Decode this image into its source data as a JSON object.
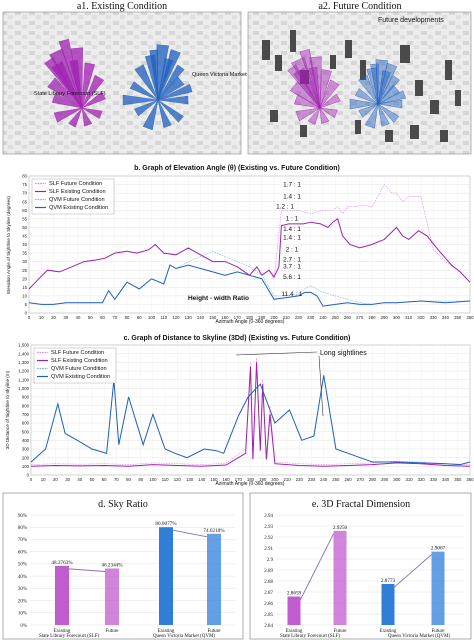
{
  "panel_a1": {
    "title": "a1. Existing Condition",
    "labels": [
      "State Library Forecourt (SLF)",
      "Queen Victoria Market (QVM)"
    ]
  },
  "panel_a2": {
    "title": "a2. Future Condition",
    "labels": [
      "Future developments"
    ]
  },
  "colors": {
    "slf_future": "#d98ae0",
    "slf_existing": "#a020b0",
    "qvm_future": "#7fb2e8",
    "qvm_existing": "#1f5fbf",
    "bar_slf": "#c05ccf",
    "bar_qvm": "#2f7fd8"
  },
  "chart_data": [
    {
      "id": "b",
      "type": "line",
      "title": "b. Graph of Elevation Angle (θ) (Existing vs. Future Condition)",
      "xlabel": "Azimuth Angle (0-360 degrees)",
      "ylabel": "Elevation Angle of Sightline to Skyline (degrees)",
      "xlim": [
        0,
        360
      ],
      "ylim": [
        0,
        80
      ],
      "x_ticks": [
        0,
        10,
        20,
        30,
        40,
        50,
        60,
        70,
        80,
        90,
        100,
        110,
        120,
        130,
        140,
        150,
        160,
        170,
        180,
        190,
        200,
        210,
        220,
        230,
        240,
        250,
        260,
        270,
        280,
        290,
        300,
        310,
        320,
        330,
        340,
        350,
        360
      ],
      "y_ticks": [
        0,
        5,
        10,
        15,
        20,
        25,
        30,
        35,
        40,
        45,
        50,
        55,
        60,
        65,
        70,
        75,
        80
      ],
      "grid": true,
      "legend": "top-left",
      "annotations": {
        "ratio_title": "Height - width Ratio",
        "ratios": [
          "1.7 : 1",
          "1.4 : 1",
          "1.2 : 1",
          "1 : 1",
          "1.4 : 1",
          "1.4 : 1",
          "2 : 1",
          "2.7 : 1",
          "3.7 : 1",
          "5.6 : 1",
          "11.4 : 1"
        ]
      },
      "series": [
        {
          "name": "SLF Future Condition",
          "style": "dashed",
          "x": [
            0,
            8,
            15,
            25,
            35,
            45,
            55,
            62,
            70,
            80,
            88,
            98,
            103,
            110,
            120,
            130,
            140,
            150,
            160,
            170,
            180,
            186,
            190,
            196,
            200,
            206,
            210,
            220,
            230,
            240,
            248,
            252,
            256,
            260,
            266,
            272,
            280,
            290,
            296,
            300,
            305,
            310,
            320,
            330,
            340,
            350,
            360
          ],
          "y": [
            14,
            20,
            25,
            24,
            27,
            30,
            31,
            32,
            35,
            36,
            35,
            37,
            40,
            35,
            34,
            38,
            34,
            30,
            30,
            27,
            22,
            27,
            22,
            25,
            20,
            60,
            60,
            60,
            58,
            60,
            60,
            62,
            58,
            62,
            62,
            63,
            62,
            75,
            70,
            70,
            65,
            68,
            68,
            37,
            30,
            25,
            18
          ]
        },
        {
          "name": "SLF Existing Condition",
          "style": "solid",
          "x": [
            0,
            8,
            15,
            25,
            35,
            45,
            55,
            62,
            70,
            80,
            88,
            98,
            103,
            110,
            120,
            130,
            140,
            150,
            160,
            170,
            180,
            186,
            190,
            196,
            200,
            204,
            206,
            212,
            218,
            224,
            230,
            238,
            244,
            248,
            252,
            256,
            262,
            270,
            280,
            290,
            300,
            305,
            310,
            318,
            325,
            335,
            345,
            352,
            360
          ],
          "y": [
            14,
            20,
            25,
            24,
            27,
            30,
            31,
            32,
            35,
            36,
            35,
            37,
            40,
            35,
            34,
            38,
            34,
            30,
            30,
            27,
            22,
            27,
            22,
            25,
            21,
            27,
            51,
            52,
            52,
            52,
            53,
            52,
            50,
            53,
            55,
            45,
            40,
            38,
            40,
            43,
            50,
            45,
            43,
            48,
            45,
            36,
            28,
            24,
            18
          ]
        },
        {
          "name": "QVM Future Condition",
          "style": "dashed",
          "x": [
            0,
            10,
            20,
            30,
            40,
            50,
            60,
            65,
            70,
            80,
            90,
            100,
            110,
            115,
            120,
            130,
            140,
            150,
            160,
            170,
            180,
            190,
            200,
            210,
            220,
            225,
            230,
            235,
            240,
            250,
            260,
            270,
            280,
            290,
            300,
            320,
            340,
            360
          ],
          "y": [
            6,
            5,
            5,
            6,
            6,
            6,
            6,
            13,
            8,
            18,
            14,
            20,
            17,
            28,
            26,
            30,
            33,
            36,
            33,
            30,
            27,
            22,
            10,
            10,
            11,
            14,
            16,
            14,
            12,
            10,
            8,
            6,
            5,
            6,
            6,
            7,
            7,
            7
          ]
        },
        {
          "name": "QVM Existing Condition",
          "style": "solid",
          "x": [
            0,
            10,
            20,
            30,
            40,
            50,
            60,
            65,
            70,
            80,
            90,
            100,
            110,
            115,
            120,
            130,
            140,
            150,
            160,
            170,
            180,
            190,
            200,
            210,
            220,
            225,
            230,
            235,
            240,
            250,
            260,
            270,
            280,
            290,
            300,
            320,
            340,
            360
          ],
          "y": [
            6,
            5,
            5,
            6,
            6,
            6,
            6,
            13,
            8,
            18,
            14,
            20,
            17,
            28,
            26,
            28,
            26,
            24,
            22,
            24,
            22,
            20,
            8,
            9,
            10,
            12,
            12,
            10,
            4,
            5,
            6,
            5,
            5,
            6,
            6,
            7,
            6,
            7
          ]
        }
      ]
    },
    {
      "id": "c",
      "type": "line",
      "title": "c. Graph of Distance to Skyline (3Dd) (Existing vs. Future Condition)",
      "xlabel": "Azimuth Angle (0-360 degrees)",
      "ylabel": "3D Distance of Sightline to Skyline (m)",
      "xlim": [
        0,
        360
      ],
      "ylim": [
        0,
        1500
      ],
      "x_ticks": [
        0,
        10,
        20,
        30,
        40,
        50,
        60,
        70,
        80,
        90,
        100,
        110,
        120,
        130,
        140,
        150,
        160,
        170,
        180,
        190,
        200,
        210,
        220,
        230,
        240,
        250,
        260,
        270,
        280,
        290,
        300,
        310,
        320,
        330,
        340,
        350,
        360
      ],
      "y_ticks": [
        0,
        100,
        200,
        300,
        400,
        500,
        600,
        700,
        800,
        900,
        1000,
        1100,
        1200,
        1300,
        1400,
        1500
      ],
      "y_tick_labels": [
        "0",
        "100",
        "200",
        "300",
        "400",
        "500",
        "600",
        "700",
        "800",
        "900",
        "1,000",
        "1,100",
        "1,200",
        "1,300",
        "1,400",
        "1,500"
      ],
      "grid": true,
      "legend": "top-left",
      "annotations": {
        "callout": "Long sightlines"
      },
      "series": [
        {
          "name": "SLF Future Condition",
          "style": "dashed",
          "x": [
            0,
            20,
            40,
            60,
            80,
            100,
            120,
            140,
            160,
            176,
            180,
            182,
            185,
            188,
            190,
            193,
            196,
            200,
            220,
            240,
            260,
            280,
            300,
            320,
            340,
            360
          ],
          "y": [
            120,
            130,
            125,
            130,
            120,
            140,
            130,
            120,
            135,
            300,
            1300,
            200,
            1350,
            300,
            1100,
            200,
            800,
            150,
            130,
            120,
            130,
            140,
            160,
            150,
            130,
            120
          ]
        },
        {
          "name": "SLF Existing Condition",
          "style": "solid",
          "x": [
            0,
            20,
            40,
            60,
            80,
            100,
            120,
            140,
            160,
            176,
            180,
            182,
            185,
            188,
            190,
            193,
            196,
            200,
            220,
            240,
            260,
            280,
            300,
            320,
            340,
            360
          ],
          "y": [
            100,
            110,
            105,
            110,
            100,
            120,
            110,
            100,
            115,
            250,
            1250,
            180,
            1300,
            280,
            1050,
            180,
            700,
            130,
            110,
            100,
            110,
            120,
            140,
            130,
            110,
            100
          ]
        },
        {
          "name": "QVM Future Condition",
          "style": "dashed",
          "x": [
            0,
            12,
            22,
            28,
            38,
            50,
            62,
            68,
            72,
            80,
            92,
            100,
            110,
            118,
            128,
            142,
            152,
            158,
            165,
            170,
            178,
            188,
            200,
            212,
            222,
            232,
            240,
            250,
            260,
            270,
            280,
            300,
            320,
            340,
            352,
            360
          ],
          "y": [
            150,
            300,
            820,
            480,
            400,
            300,
            250,
            1100,
            350,
            900,
            350,
            700,
            300,
            250,
            200,
            300,
            280,
            250,
            500,
            680,
            900,
            1050,
            600,
            750,
            400,
            450,
            1150,
            300,
            250,
            200,
            150,
            150,
            140,
            130,
            120,
            150
          ]
        },
        {
          "name": "QVM Existing Condition",
          "style": "solid",
          "x": [
            0,
            12,
            22,
            28,
            38,
            50,
            62,
            68,
            72,
            80,
            92,
            100,
            110,
            118,
            128,
            142,
            152,
            158,
            165,
            170,
            178,
            188,
            200,
            212,
            222,
            232,
            240,
            250,
            260,
            270,
            280,
            300,
            320,
            340,
            352,
            360
          ],
          "y": [
            150,
            300,
            820,
            480,
            400,
            300,
            250,
            1100,
            350,
            900,
            350,
            700,
            300,
            250,
            200,
            300,
            280,
            250,
            500,
            680,
            900,
            1050,
            600,
            750,
            400,
            450,
            1150,
            300,
            250,
            200,
            150,
            150,
            140,
            130,
            120,
            150
          ]
        }
      ]
    },
    {
      "id": "d",
      "type": "bar",
      "title": "d. Sky Ratio",
      "categories": [
        "Existing",
        "Future",
        "Existing",
        "Future"
      ],
      "groups": [
        "State Library Forecourt (SLF)",
        "Queen Victoria Market (QVM)"
      ],
      "values": [
        48.3763,
        46.2344,
        80.0077,
        74.6218
      ],
      "value_labels": [
        "48.3763%",
        "46.2344%",
        "80.0077%",
        "74.6218%"
      ],
      "ylim": [
        0,
        90
      ],
      "y_ticks": [
        0,
        10,
        20,
        30,
        40,
        50,
        60,
        70,
        80,
        90
      ],
      "y_tick_labels": [
        "0%",
        "10%",
        "20%",
        "30%",
        "40%",
        "50%",
        "60%",
        "70%",
        "80%",
        "90%"
      ]
    },
    {
      "id": "e",
      "type": "bar",
      "title": "e. 3D Fractal Dimension",
      "categories": [
        "Existing",
        "Future",
        "Existing",
        "Future"
      ],
      "groups": [
        "State Library Forecourt (SLF)",
        "Queen Victoria Market (QVM)"
      ],
      "values": [
        2.8659,
        2.9256,
        2.8773,
        2.9067
      ],
      "value_labels": [
        "2.8659",
        "2.9256",
        "2.8773",
        "2.9067"
      ],
      "ylim": [
        2.84,
        2.94
      ],
      "y_ticks": [
        2.84,
        2.85,
        2.86,
        2.87,
        2.88,
        2.89,
        2.9,
        2.91,
        2.92,
        2.93,
        2.94
      ],
      "y_tick_labels": [
        "2.84",
        "2.85",
        "2.86",
        "2.87",
        "2.88",
        "2.89",
        "2.9",
        "2.91",
        "2.92",
        "2.93",
        "2.94"
      ]
    }
  ]
}
